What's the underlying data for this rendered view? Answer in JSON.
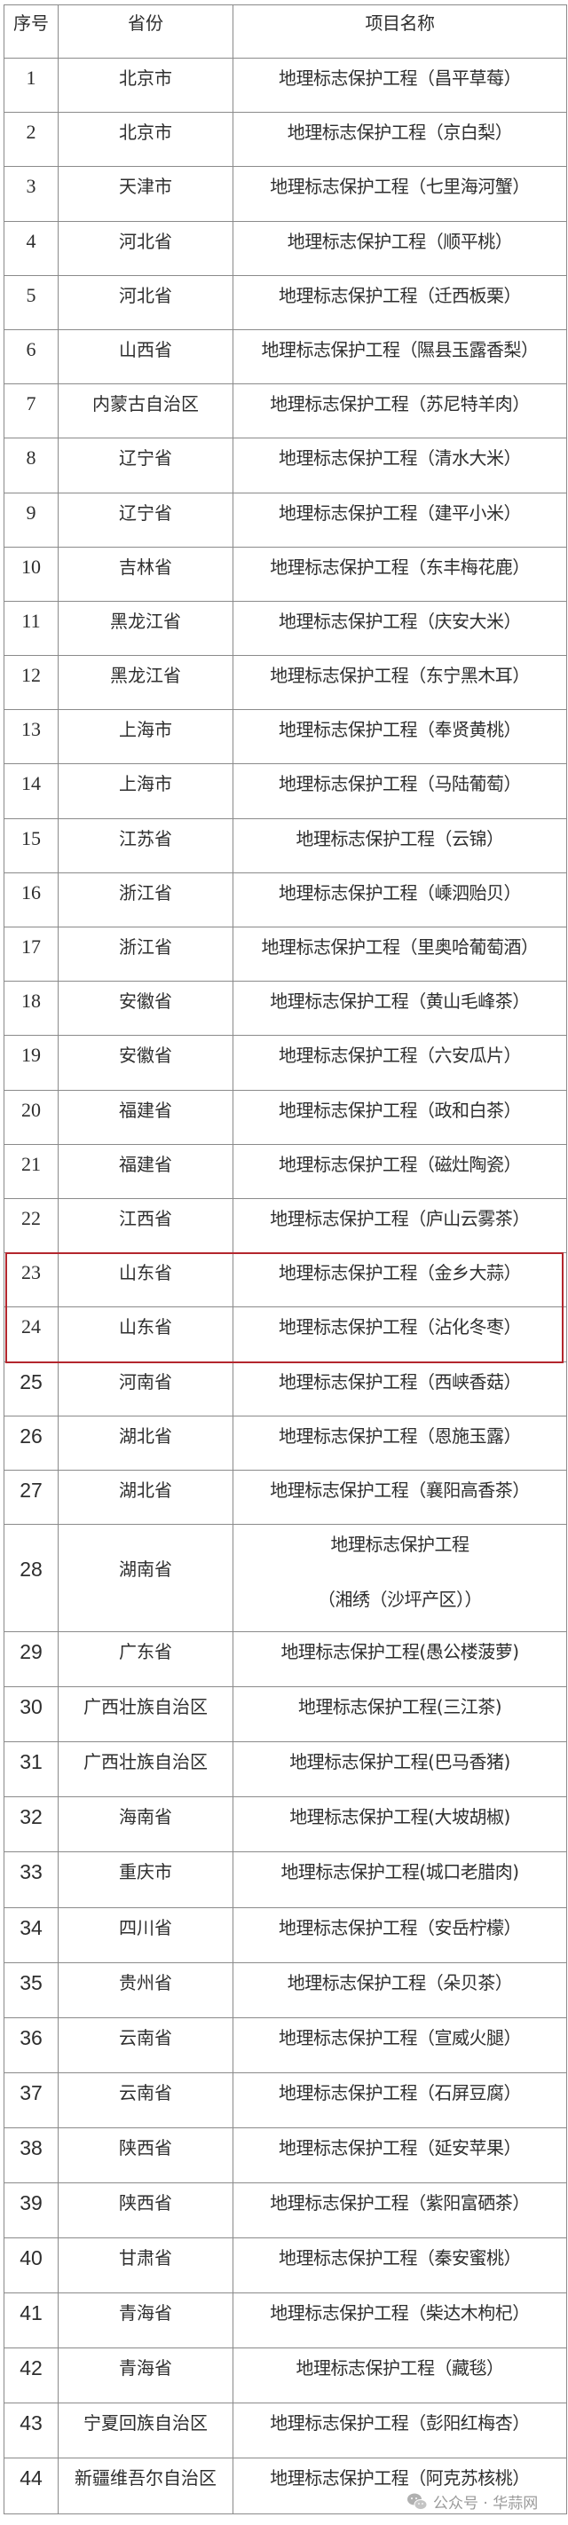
{
  "header": {
    "no": "序号",
    "province": "省份",
    "project": "项目名称"
  },
  "highlight_color": "#b3262d",
  "highlighted_rows": [
    "23",
    "24"
  ],
  "rows": [
    {
      "no": "1",
      "province": "北京市",
      "project": "地理标志保护工程（昌平草莓）"
    },
    {
      "no": "2",
      "province": "北京市",
      "project": "地理标志保护工程（京白梨）"
    },
    {
      "no": "3",
      "province": "天津市",
      "project": "地理标志保护工程（七里海河蟹）"
    },
    {
      "no": "4",
      "province": "河北省",
      "project": "地理标志保护工程（顺平桃）"
    },
    {
      "no": "5",
      "province": "河北省",
      "project": "地理标志保护工程（迁西板栗）"
    },
    {
      "no": "6",
      "province": "山西省",
      "project": "地理标志保护工程（隰县玉露香梨）"
    },
    {
      "no": "7",
      "province": "内蒙古自治区",
      "project": "地理标志保护工程（苏尼特羊肉）"
    },
    {
      "no": "8",
      "province": "辽宁省",
      "project": "地理标志保护工程（清水大米）"
    },
    {
      "no": "9",
      "province": "辽宁省",
      "project": "地理标志保护工程（建平小米）"
    },
    {
      "no": "10",
      "province": "吉林省",
      "project": "地理标志保护工程（东丰梅花鹿）"
    },
    {
      "no": "11",
      "province": "黑龙江省",
      "project": "地理标志保护工程（庆安大米）"
    },
    {
      "no": "12",
      "province": "黑龙江省",
      "project": "地理标志保护工程（东宁黑木耳）"
    },
    {
      "no": "13",
      "province": "上海市",
      "project": "地理标志保护工程（奉贤黄桃）"
    },
    {
      "no": "14",
      "province": "上海市",
      "project": "地理标志保护工程（马陆葡萄）"
    },
    {
      "no": "15",
      "province": "江苏省",
      "project": "地理标志保护工程（云锦）"
    },
    {
      "no": "16",
      "province": "浙江省",
      "project": "地理标志保护工程（嵊泗贻贝）"
    },
    {
      "no": "17",
      "province": "浙江省",
      "project": "地理标志保护工程（里奥哈葡萄酒）"
    },
    {
      "no": "18",
      "province": "安徽省",
      "project": "地理标志保护工程（黄山毛峰茶）"
    },
    {
      "no": "19",
      "province": "安徽省",
      "project": "地理标志保护工程（六安瓜片）"
    },
    {
      "no": "20",
      "province": "福建省",
      "project": "地理标志保护工程（政和白茶）"
    },
    {
      "no": "21",
      "province": "福建省",
      "project": "地理标志保护工程（磁灶陶瓷）"
    },
    {
      "no": "22",
      "province": "江西省",
      "project": "地理标志保护工程（庐山云雾茶）"
    },
    {
      "no": "23",
      "province": "山东省",
      "project": "地理标志保护工程（金乡大蒜）"
    },
    {
      "no": "24",
      "province": "山东省",
      "project": "地理标志保护工程（沾化冬枣）"
    },
    {
      "no": "25",
      "province": "河南省",
      "project": "地理标志保护工程（西峡香菇）"
    },
    {
      "no": "26",
      "province": "湖北省",
      "project": "地理标志保护工程（恩施玉露）"
    },
    {
      "no": "27",
      "province": "湖北省",
      "project": "地理标志保护工程（襄阳高香茶）"
    },
    {
      "no": "28",
      "province": "湖南省",
      "project": "地理标志保护工程",
      "project_line2": "（湘绣（沙坪产区））"
    },
    {
      "no": "29",
      "province": "广东省",
      "project": "地理标志保护工程(愚公楼菠萝)"
    },
    {
      "no": "30",
      "province": "广西壮族自治区",
      "project": "地理标志保护工程(三江茶)"
    },
    {
      "no": "31",
      "province": "广西壮族自治区",
      "project": "地理标志保护工程(巴马香猪)"
    },
    {
      "no": "32",
      "province": "海南省",
      "project": "地理标志保护工程(大坡胡椒)"
    },
    {
      "no": "33",
      "province": "重庆市",
      "project": "地理标志保护工程(城口老腊肉)"
    },
    {
      "no": "34",
      "province": "四川省",
      "project": "地理标志保护工程（安岳柠檬）"
    },
    {
      "no": "35",
      "province": "贵州省",
      "project": "地理标志保护工程（朵贝茶）"
    },
    {
      "no": "36",
      "province": "云南省",
      "project": "地理标志保护工程（宣威火腿）"
    },
    {
      "no": "37",
      "province": "云南省",
      "project": "地理标志保护工程（石屏豆腐）"
    },
    {
      "no": "38",
      "province": "陕西省",
      "project": "地理标志保护工程（延安苹果）"
    },
    {
      "no": "39",
      "province": "陕西省",
      "project": "地理标志保护工程（紫阳富硒茶）"
    },
    {
      "no": "40",
      "province": "甘肃省",
      "project": "地理标志保护工程（秦安蜜桃）"
    },
    {
      "no": "41",
      "province": "青海省",
      "project": "地理标志保护工程（柴达木枸杞）"
    },
    {
      "no": "42",
      "province": "青海省",
      "project": "地理标志保护工程（藏毯）"
    },
    {
      "no": "43",
      "province": "宁夏回族自治区",
      "project": "地理标志保护工程（彭阳红梅杏）"
    },
    {
      "no": "44",
      "province": "新疆维吾尔自治区",
      "project": "地理标志保护工程（阿克苏核桃）"
    }
  ],
  "watermark": {
    "icon": "wechat-icon",
    "text": "公众号 · 华蒜网"
  }
}
